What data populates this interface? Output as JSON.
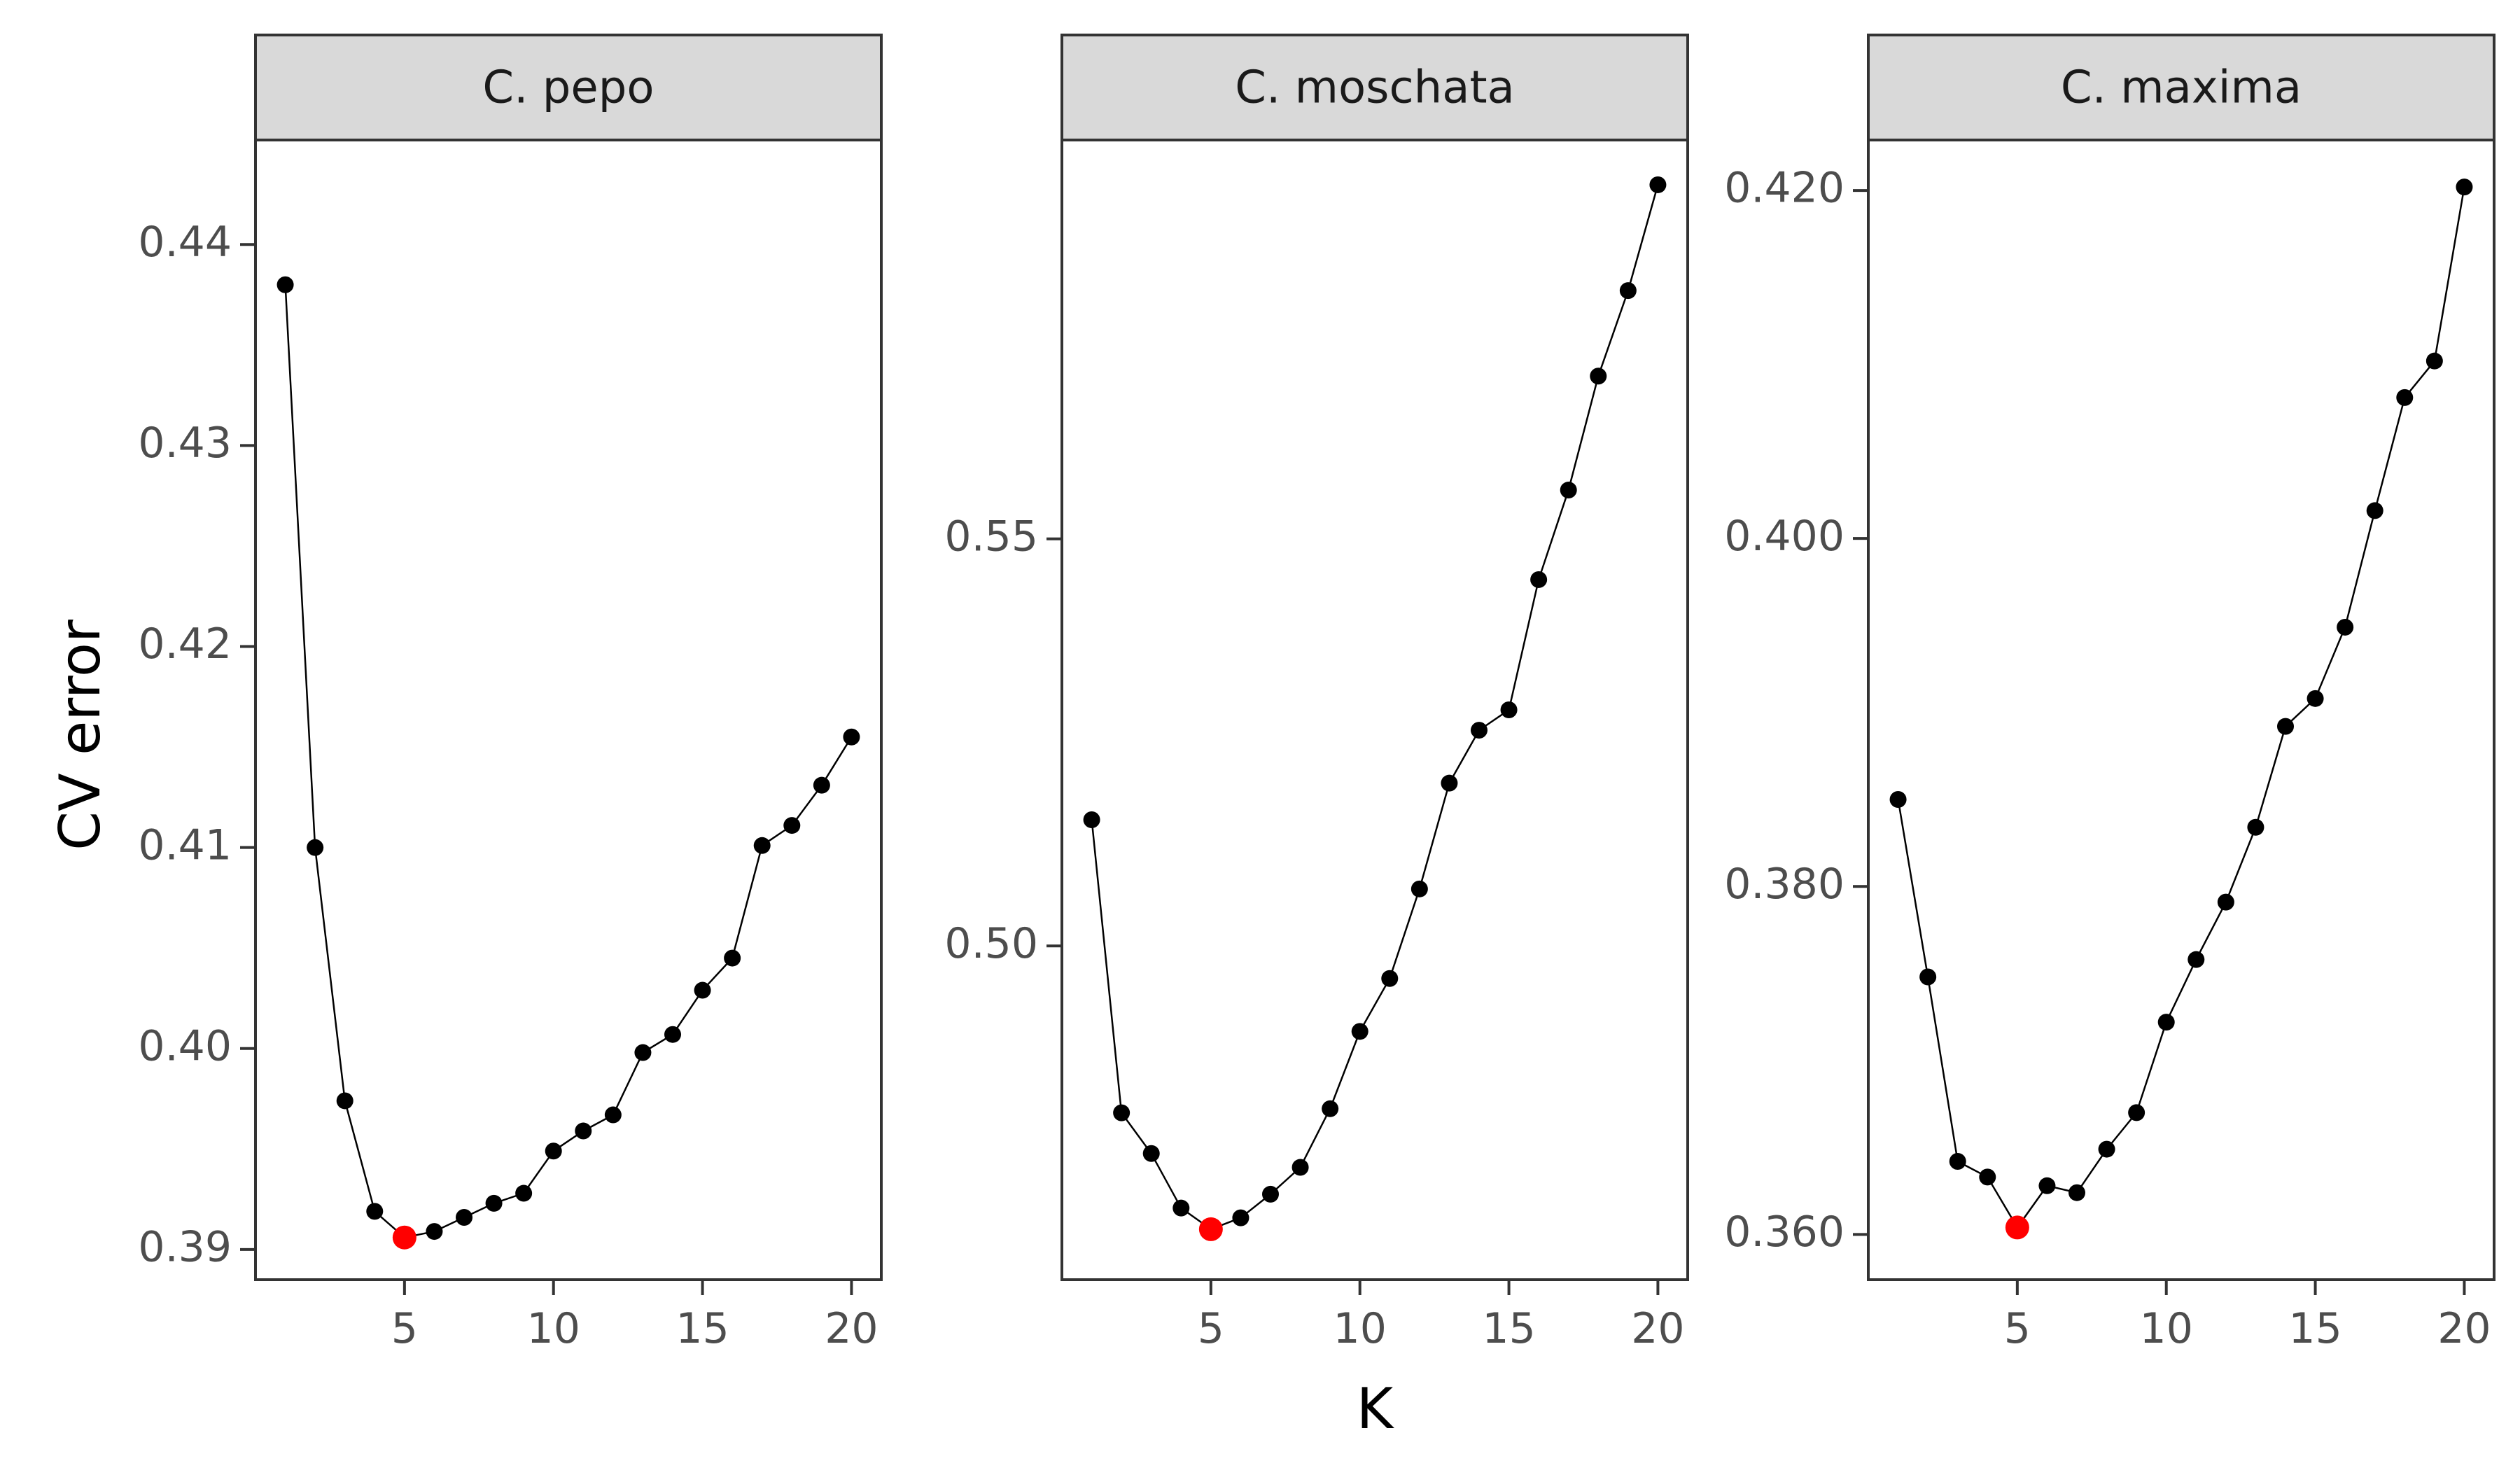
{
  "colors": {
    "point": "#000000",
    "highlight": "#ff0000",
    "strip_fill": "#d9d9d9",
    "frame": "#333333"
  },
  "axis_titles": {
    "x": "K",
    "y": "CV error"
  },
  "chart_data": [
    {
      "type": "line",
      "title": "C. pepo",
      "x": [
        1,
        2,
        3,
        4,
        5,
        6,
        7,
        8,
        9,
        10,
        11,
        12,
        13,
        14,
        15,
        16,
        17,
        18,
        19,
        20
      ],
      "y": [
        0.438,
        0.41,
        0.3974,
        0.3919,
        0.3906,
        0.3909,
        0.3916,
        0.3923,
        0.3928,
        0.3949,
        0.3959,
        0.3967,
        0.3998,
        0.4007,
        0.4029,
        0.4045,
        0.4101,
        0.4111,
        0.4131,
        0.4155
      ],
      "highlight_k": 5,
      "xlim": [
        0,
        21
      ],
      "ylim": [
        0.3885,
        0.4452
      ],
      "xticks": [
        5,
        10,
        15,
        20
      ],
      "xtick_labels": [
        "5",
        "10",
        "15",
        "20"
      ],
      "yticks": [
        0.39,
        0.4,
        0.41,
        0.42,
        0.43,
        0.44
      ],
      "ytick_labels": [
        "0.39",
        "0.40",
        "0.41",
        "0.42",
        "0.43",
        "0.44"
      ],
      "grid": false
    },
    {
      "type": "line",
      "title": "C. moschata",
      "x": [
        1,
        2,
        3,
        4,
        5,
        6,
        7,
        8,
        9,
        10,
        11,
        12,
        13,
        14,
        15,
        16,
        17,
        18,
        19,
        20
      ],
      "y": [
        0.5155,
        0.4795,
        0.4745,
        0.4678,
        0.4652,
        0.4666,
        0.4695,
        0.4728,
        0.48,
        0.4895,
        0.496,
        0.507,
        0.52,
        0.5265,
        0.529,
        0.545,
        0.556,
        0.57,
        0.5805,
        0.5935
      ],
      "highlight_k": 5,
      "xlim": [
        0,
        21
      ],
      "ylim": [
        0.459,
        0.599
      ],
      "xticks": [
        5,
        10,
        15,
        20
      ],
      "xtick_labels": [
        "5",
        "10",
        "15",
        "20"
      ],
      "yticks": [
        0.5,
        0.55
      ],
      "ytick_labels": [
        "0.50",
        "0.55"
      ],
      "grid": false
    },
    {
      "type": "line",
      "title": "C. maxima",
      "x": [
        1,
        2,
        3,
        4,
        5,
        6,
        7,
        8,
        9,
        10,
        11,
        12,
        13,
        14,
        15,
        16,
        17,
        18,
        19,
        20
      ],
      "y": [
        0.385,
        0.3748,
        0.3642,
        0.3633,
        0.3604,
        0.3628,
        0.3624,
        0.3649,
        0.367,
        0.3722,
        0.3758,
        0.3791,
        0.3834,
        0.3892,
        0.3908,
        0.3949,
        0.4016,
        0.4081,
        0.4102,
        0.4202
      ],
      "highlight_k": 5,
      "xlim": [
        0,
        21
      ],
      "ylim": [
        0.3574,
        0.4229
      ],
      "xticks": [
        5,
        10,
        15,
        20
      ],
      "xtick_labels": [
        "5",
        "10",
        "15",
        "20"
      ],
      "yticks": [
        0.36,
        0.38,
        0.4,
        0.42
      ],
      "ytick_labels": [
        "0.360",
        "0.380",
        "0.400",
        "0.420"
      ],
      "grid": false
    }
  ]
}
